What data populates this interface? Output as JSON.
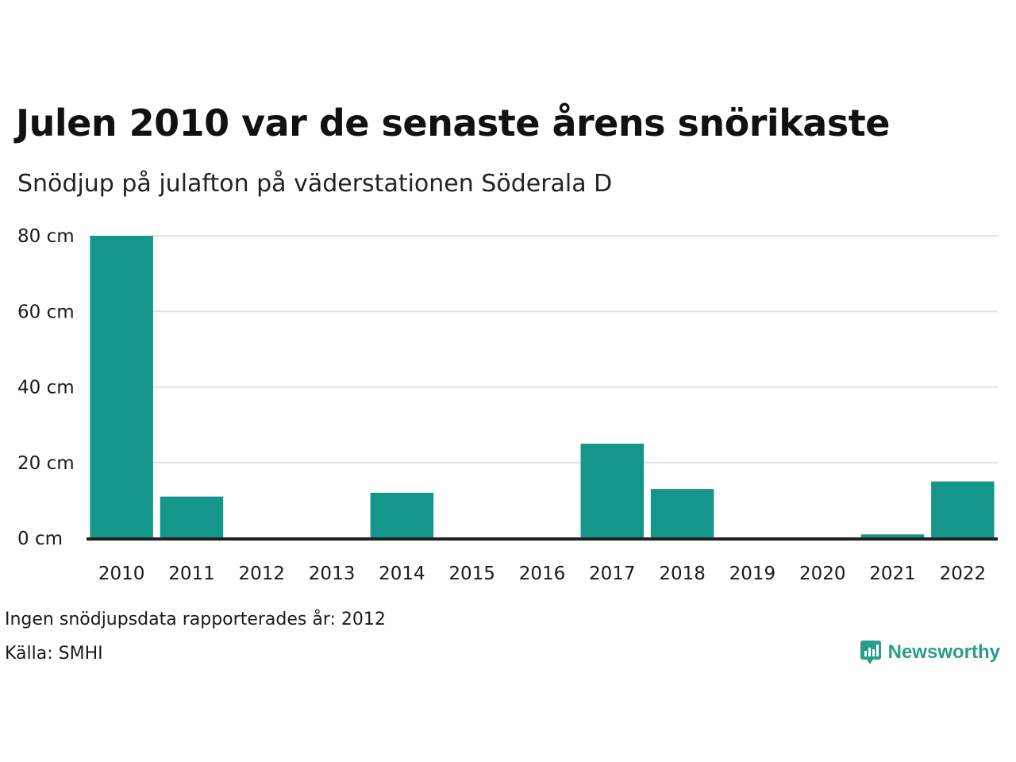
{
  "header": {
    "title": "Julen 2010 var de senaste årens snörikaste",
    "subtitle": "Snödjup på julafton på väderstationen Söderala D"
  },
  "footer": {
    "missing_note": "Ingen snödjupsdata rapporterades år: 2012",
    "source": "Källa: SMHI",
    "brand": "Newsworthy"
  },
  "colors": {
    "bar": "#14968a",
    "grid": "#e2e2e2",
    "baseline": "#222222",
    "brand": "#2a9d87"
  },
  "icons": {
    "brand_logo": "bar-chart-speech-bubble-icon"
  },
  "chart_data": {
    "type": "bar",
    "categories": [
      "2010",
      "2011",
      "2012",
      "2013",
      "2014",
      "2015",
      "2016",
      "2017",
      "2018",
      "2019",
      "2020",
      "2021",
      "2022"
    ],
    "values": [
      80,
      11,
      0,
      0,
      12,
      0,
      0,
      25,
      13,
      0,
      0,
      1,
      15
    ],
    "ylim": [
      0,
      80
    ],
    "yticks": [
      0,
      20,
      40,
      60,
      80
    ],
    "ytick_labels": [
      "0 cm",
      "20 cm",
      "40 cm",
      "60 cm",
      "80 cm"
    ],
    "grid": true,
    "legend": false
  }
}
